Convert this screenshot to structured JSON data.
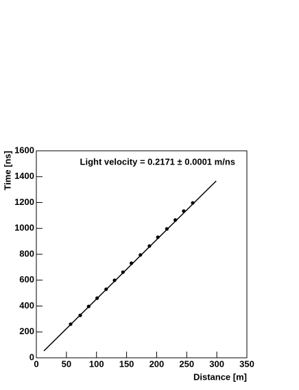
{
  "chart_data": {
    "type": "scatter",
    "annotation": "Light velocity = 0.2171 ± 0.0001 m/ns",
    "x_label": "Distance  [m]",
    "y_label": "Time [ns]",
    "x": [
      57,
      73,
      87,
      101,
      116,
      130,
      144,
      158,
      173,
      188,
      202,
      217,
      231,
      245,
      260
    ],
    "values": [
      260,
      328,
      397,
      461,
      530,
      599,
      662,
      731,
      795,
      864,
      932,
      996,
      1065,
      1134,
      1197
    ],
    "color": "#000000",
    "fit": {
      "x": [
        12.5,
        299
      ],
      "values": [
        53,
        1367
      ],
      "color": "#000000"
    },
    "xlim": [
      0,
      350
    ],
    "xticks": [
      0,
      50,
      100,
      150,
      200,
      250,
      300,
      350
    ],
    "ylim": [
      0,
      1600
    ],
    "yticks": [
      0,
      200,
      400,
      600,
      800,
      1000,
      1200,
      1400,
      1600
    ],
    "grid": false
  }
}
